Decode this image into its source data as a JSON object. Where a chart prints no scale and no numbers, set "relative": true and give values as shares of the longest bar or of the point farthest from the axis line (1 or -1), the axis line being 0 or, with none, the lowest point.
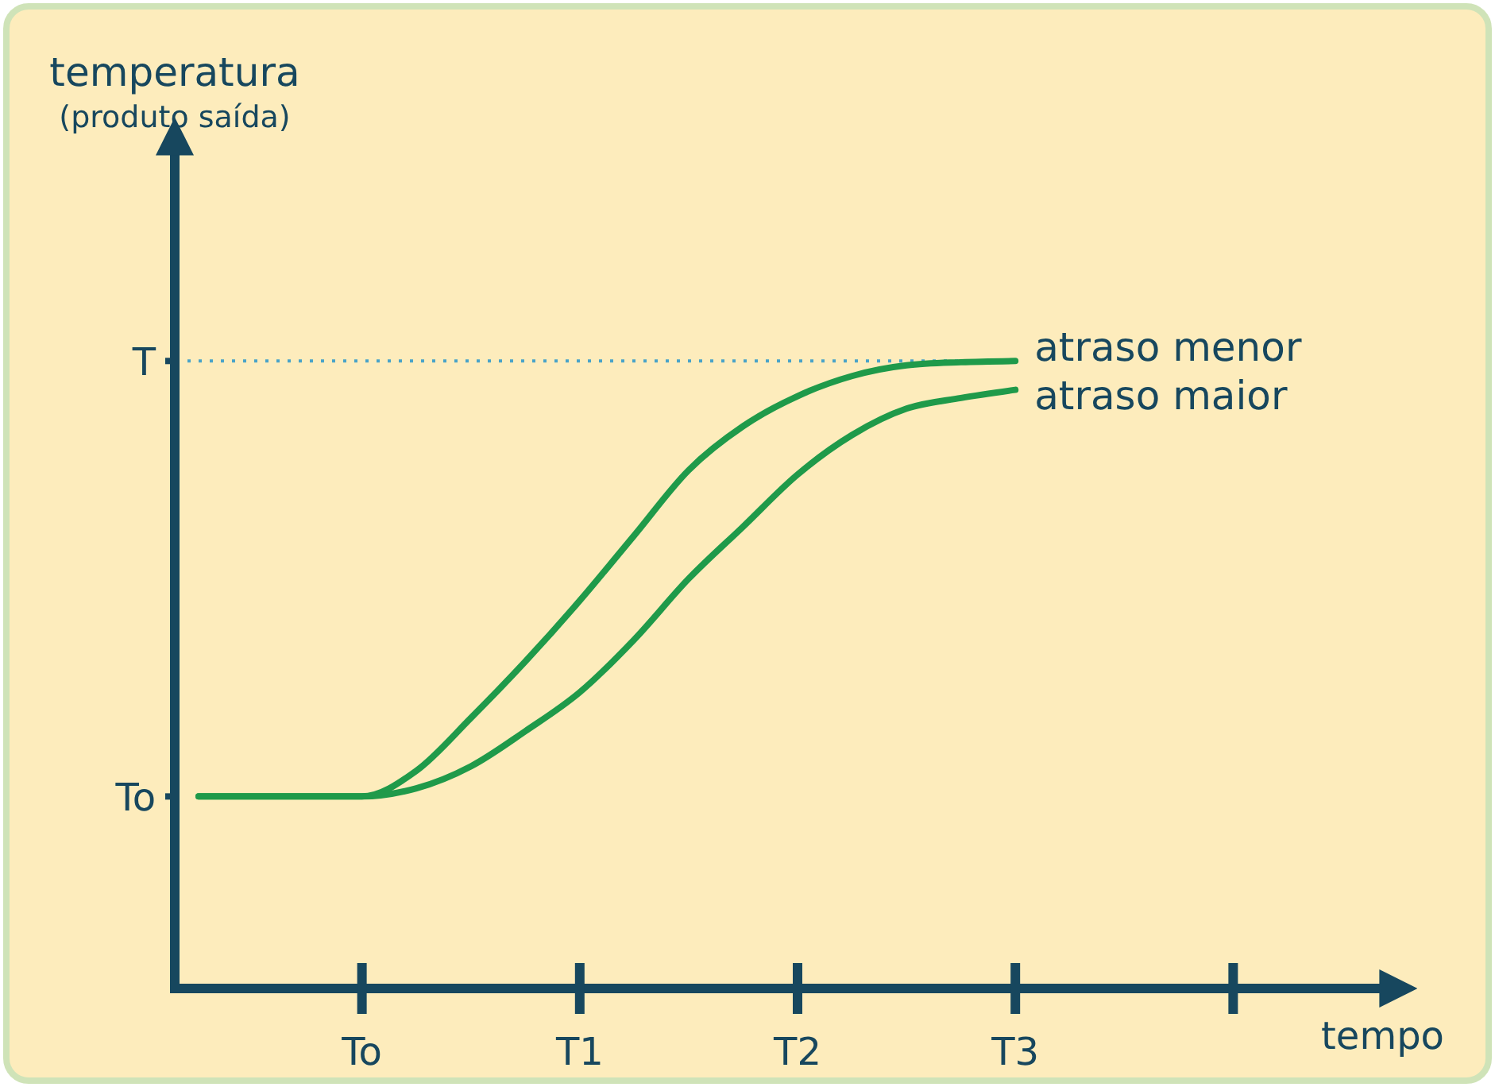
{
  "chart_data": {
    "type": "line",
    "xlabel": "tempo",
    "relative": true,
    "categories": [
      null,
      null,
      null,
      "To",
      null,
      null,
      null,
      "T1",
      null,
      null,
      null,
      "T2",
      null,
      null,
      null,
      "T3",
      null,
      null,
      null,
      null,
      null,
      null,
      null
    ],
    "ref_lines": [
      {
        "axis": "y",
        "value": 1,
        "label": "T",
        "color": "#4aa3c8",
        "line_style": "dotted"
      }
    ],
    "annotations": [
      "temperatura\n(produto saída)",
      "To"
    ],
    "legend": false,
    "marker": "none",
    "series": [
      {
        "name": "atraso menor",
        "color": "#1f9a4a",
        "values": [
          0.306,
          0.306,
          0.306,
          0.306,
          0.347,
          0.431,
          0.521,
          0.618,
          0.722,
          0.826,
          0.896,
          0.944,
          0.976,
          0.993,
          0.998,
          1.0,
          null,
          null,
          null,
          null,
          null,
          null,
          null
        ]
      },
      {
        "name": "atraso maior",
        "color": "#1f9a4a",
        "values": [
          0.306,
          0.306,
          0.306,
          0.306,
          0.319,
          0.354,
          0.41,
          0.472,
          0.556,
          0.653,
          0.736,
          0.819,
          0.882,
          0.924,
          0.941,
          0.954,
          null,
          null,
          null,
          null,
          null,
          null,
          null
        ]
      }
    ]
  }
}
